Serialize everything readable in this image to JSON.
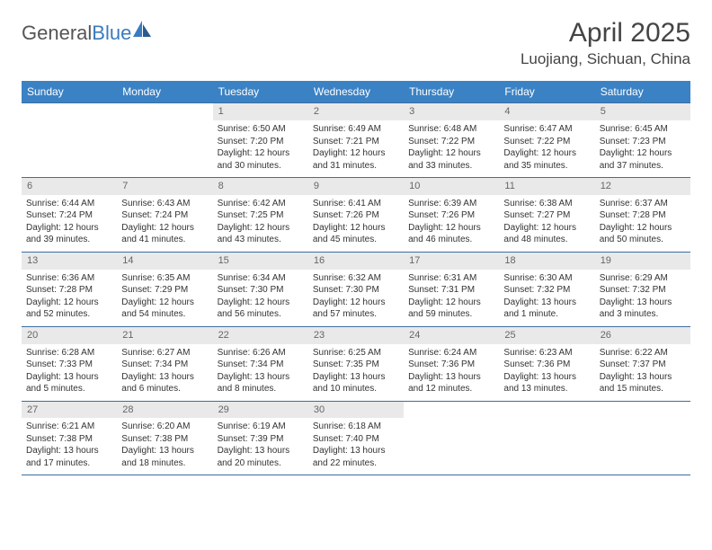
{
  "logo": {
    "text1": "General",
    "text2": "Blue"
  },
  "title": "April 2025",
  "location": "Luojiang, Sichuan, China",
  "colors": {
    "header_bg": "#3b82c4",
    "header_text": "#ffffff",
    "daynum_bg": "#e9e9e9",
    "daynum_text": "#666666",
    "border": "#3b6fa0",
    "body_text": "#333333"
  },
  "day_names": [
    "Sunday",
    "Monday",
    "Tuesday",
    "Wednesday",
    "Thursday",
    "Friday",
    "Saturday"
  ],
  "weeks": [
    [
      null,
      null,
      {
        "n": "1",
        "sr": "Sunrise: 6:50 AM",
        "ss": "Sunset: 7:20 PM",
        "dl": "Daylight: 12 hours and 30 minutes."
      },
      {
        "n": "2",
        "sr": "Sunrise: 6:49 AM",
        "ss": "Sunset: 7:21 PM",
        "dl": "Daylight: 12 hours and 31 minutes."
      },
      {
        "n": "3",
        "sr": "Sunrise: 6:48 AM",
        "ss": "Sunset: 7:22 PM",
        "dl": "Daylight: 12 hours and 33 minutes."
      },
      {
        "n": "4",
        "sr": "Sunrise: 6:47 AM",
        "ss": "Sunset: 7:22 PM",
        "dl": "Daylight: 12 hours and 35 minutes."
      },
      {
        "n": "5",
        "sr": "Sunrise: 6:45 AM",
        "ss": "Sunset: 7:23 PM",
        "dl": "Daylight: 12 hours and 37 minutes."
      }
    ],
    [
      {
        "n": "6",
        "sr": "Sunrise: 6:44 AM",
        "ss": "Sunset: 7:24 PM",
        "dl": "Daylight: 12 hours and 39 minutes."
      },
      {
        "n": "7",
        "sr": "Sunrise: 6:43 AM",
        "ss": "Sunset: 7:24 PM",
        "dl": "Daylight: 12 hours and 41 minutes."
      },
      {
        "n": "8",
        "sr": "Sunrise: 6:42 AM",
        "ss": "Sunset: 7:25 PM",
        "dl": "Daylight: 12 hours and 43 minutes."
      },
      {
        "n": "9",
        "sr": "Sunrise: 6:41 AM",
        "ss": "Sunset: 7:26 PM",
        "dl": "Daylight: 12 hours and 45 minutes."
      },
      {
        "n": "10",
        "sr": "Sunrise: 6:39 AM",
        "ss": "Sunset: 7:26 PM",
        "dl": "Daylight: 12 hours and 46 minutes."
      },
      {
        "n": "11",
        "sr": "Sunrise: 6:38 AM",
        "ss": "Sunset: 7:27 PM",
        "dl": "Daylight: 12 hours and 48 minutes."
      },
      {
        "n": "12",
        "sr": "Sunrise: 6:37 AM",
        "ss": "Sunset: 7:28 PM",
        "dl": "Daylight: 12 hours and 50 minutes."
      }
    ],
    [
      {
        "n": "13",
        "sr": "Sunrise: 6:36 AM",
        "ss": "Sunset: 7:28 PM",
        "dl": "Daylight: 12 hours and 52 minutes."
      },
      {
        "n": "14",
        "sr": "Sunrise: 6:35 AM",
        "ss": "Sunset: 7:29 PM",
        "dl": "Daylight: 12 hours and 54 minutes."
      },
      {
        "n": "15",
        "sr": "Sunrise: 6:34 AM",
        "ss": "Sunset: 7:30 PM",
        "dl": "Daylight: 12 hours and 56 minutes."
      },
      {
        "n": "16",
        "sr": "Sunrise: 6:32 AM",
        "ss": "Sunset: 7:30 PM",
        "dl": "Daylight: 12 hours and 57 minutes."
      },
      {
        "n": "17",
        "sr": "Sunrise: 6:31 AM",
        "ss": "Sunset: 7:31 PM",
        "dl": "Daylight: 12 hours and 59 minutes."
      },
      {
        "n": "18",
        "sr": "Sunrise: 6:30 AM",
        "ss": "Sunset: 7:32 PM",
        "dl": "Daylight: 13 hours and 1 minute."
      },
      {
        "n": "19",
        "sr": "Sunrise: 6:29 AM",
        "ss": "Sunset: 7:32 PM",
        "dl": "Daylight: 13 hours and 3 minutes."
      }
    ],
    [
      {
        "n": "20",
        "sr": "Sunrise: 6:28 AM",
        "ss": "Sunset: 7:33 PM",
        "dl": "Daylight: 13 hours and 5 minutes."
      },
      {
        "n": "21",
        "sr": "Sunrise: 6:27 AM",
        "ss": "Sunset: 7:34 PM",
        "dl": "Daylight: 13 hours and 6 minutes."
      },
      {
        "n": "22",
        "sr": "Sunrise: 6:26 AM",
        "ss": "Sunset: 7:34 PM",
        "dl": "Daylight: 13 hours and 8 minutes."
      },
      {
        "n": "23",
        "sr": "Sunrise: 6:25 AM",
        "ss": "Sunset: 7:35 PM",
        "dl": "Daylight: 13 hours and 10 minutes."
      },
      {
        "n": "24",
        "sr": "Sunrise: 6:24 AM",
        "ss": "Sunset: 7:36 PM",
        "dl": "Daylight: 13 hours and 12 minutes."
      },
      {
        "n": "25",
        "sr": "Sunrise: 6:23 AM",
        "ss": "Sunset: 7:36 PM",
        "dl": "Daylight: 13 hours and 13 minutes."
      },
      {
        "n": "26",
        "sr": "Sunrise: 6:22 AM",
        "ss": "Sunset: 7:37 PM",
        "dl": "Daylight: 13 hours and 15 minutes."
      }
    ],
    [
      {
        "n": "27",
        "sr": "Sunrise: 6:21 AM",
        "ss": "Sunset: 7:38 PM",
        "dl": "Daylight: 13 hours and 17 minutes."
      },
      {
        "n": "28",
        "sr": "Sunrise: 6:20 AM",
        "ss": "Sunset: 7:38 PM",
        "dl": "Daylight: 13 hours and 18 minutes."
      },
      {
        "n": "29",
        "sr": "Sunrise: 6:19 AM",
        "ss": "Sunset: 7:39 PM",
        "dl": "Daylight: 13 hours and 20 minutes."
      },
      {
        "n": "30",
        "sr": "Sunrise: 6:18 AM",
        "ss": "Sunset: 7:40 PM",
        "dl": "Daylight: 13 hours and 22 minutes."
      },
      null,
      null,
      null
    ]
  ]
}
